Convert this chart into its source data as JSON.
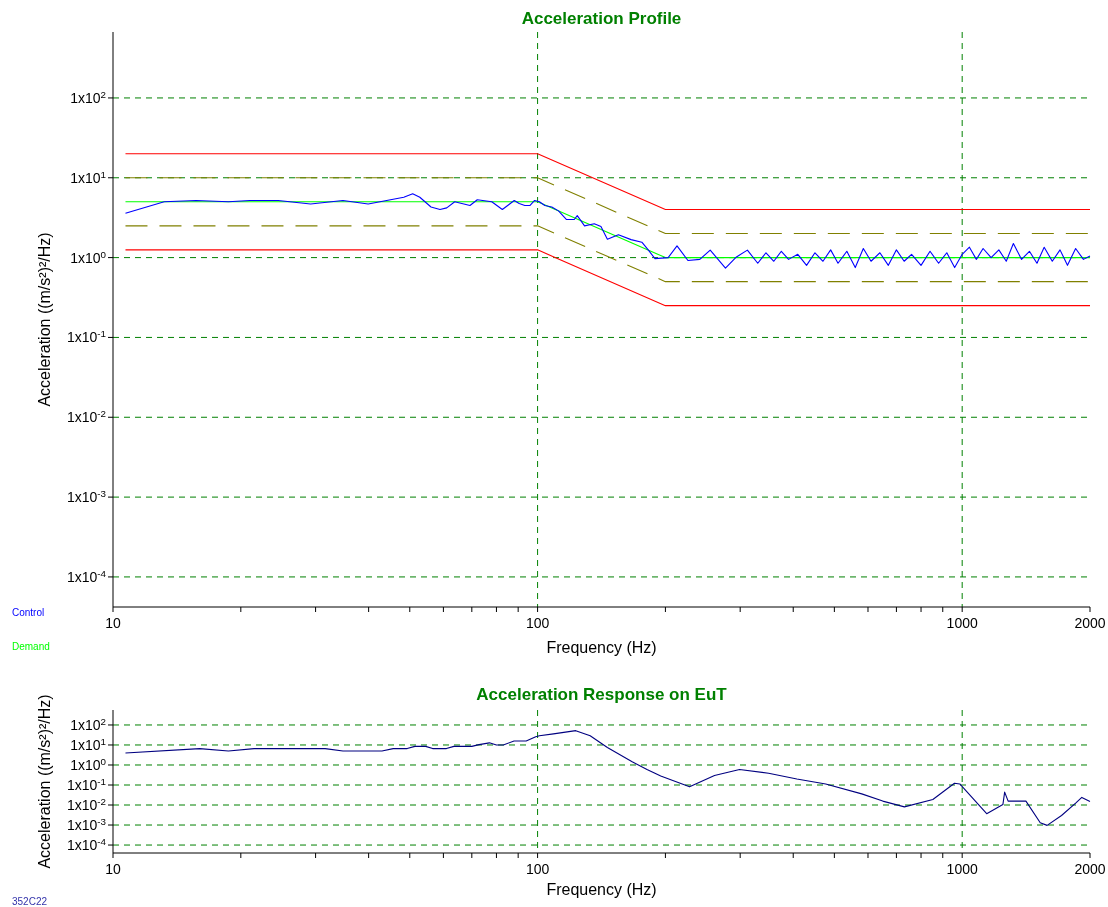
{
  "chart_data": [
    {
      "type": "line",
      "title": "Acceleration Profile",
      "xlabel": "Frequency (Hz)",
      "ylabel": "Acceleration ((m/s²)²/Hz)",
      "log": "xy",
      "grid": true,
      "legend": "bottom left",
      "xlim": [
        10,
        2000
      ],
      "ylim": [
        4.2e-05,
        670
      ],
      "xticks": [
        10,
        {
          "value": 20,
          "label": null
        },
        {
          "value": 30,
          "label": null
        },
        {
          "value": 40,
          "label": null
        },
        {
          "value": 50,
          "label": null
        },
        {
          "value": 60,
          "label": null
        },
        {
          "value": 70,
          "label": null
        },
        {
          "value": 80,
          "label": null
        },
        {
          "value": 90,
          "label": null
        },
        100,
        {
          "value": 200,
          "label": null
        },
        {
          "value": 300,
          "label": null
        },
        {
          "value": 400,
          "label": null
        },
        {
          "value": 500,
          "label": null
        },
        {
          "value": 600,
          "label": null
        },
        {
          "value": 700,
          "label": null
        },
        {
          "value": 800,
          "label": null
        },
        {
          "value": 900,
          "label": null
        },
        1000,
        2000
      ],
      "yticks": [
        {
          "value": 0.0001,
          "label": "1x10$^{-4}$"
        },
        {
          "value": 0.001,
          "label": "1x10$^{-3}$"
        },
        {
          "value": 0.01,
          "label": "1x10$^{-2}$"
        },
        {
          "value": 0.1,
          "label": "1x10$^{-1}$"
        },
        {
          "value": 1,
          "label": "1x10$^{0}$"
        },
        {
          "value": 10,
          "label": "1x10$^{1}$"
        },
        {
          "value": 100,
          "label": "1x10$^{2}$"
        }
      ],
      "series": [
        {
          "color": "#ff0000",
          "x": [
            10.7,
            100,
            200,
            2000
          ],
          "values": [
            20,
            20,
            4,
            4
          ]
        },
        {
          "color": "#ff0000",
          "x": [
            10.7,
            100,
            200,
            2000
          ],
          "values": [
            1.25,
            1.25,
            0.25,
            0.25
          ]
        },
        {
          "color": "#808000",
          "line_style": "dashed",
          "x": [
            10.7,
            100,
            200,
            2000
          ],
          "values": [
            10,
            10,
            2,
            2
          ]
        },
        {
          "color": "#808000",
          "line_style": "dashed",
          "x": [
            10.7,
            100,
            200,
            2000
          ],
          "values": [
            2.5,
            2.5,
            0.5,
            0.5
          ]
        },
        {
          "name": "Demand",
          "color": "#00ff00",
          "x": [
            10.7,
            100,
            200,
            2000
          ],
          "values": [
            5,
            5,
            1,
            1
          ]
        },
        {
          "name": "Control",
          "color": "#0000ff",
          "x": [
            10.7,
            13.2,
            15.7,
            18.7,
            21,
            24.5,
            29.2,
            34.8,
            39.9,
            48.4,
            50.8,
            52.8,
            56.1,
            58.9,
            61.1,
            63.8,
            69.3,
            72.1,
            78,
            82.6,
            88.1,
            90.5,
            93.3,
            96,
            98.4,
            101,
            104,
            108,
            112,
            117,
            122,
            124,
            129,
            136,
            141,
            146,
            155,
            166,
            176,
            182,
            189,
            203,
            213,
            226,
            241,
            255,
            277,
            294,
            312,
            330,
            345,
            360,
            375,
            390,
            410,
            430,
            450,
            470,
            490,
            510,
            535,
            560,
            585,
            610,
            640,
            670,
            700,
            730,
            760,
            800,
            840,
            880,
            920,
            960,
            1000,
            1040,
            1080,
            1120,
            1170,
            1220,
            1270,
            1320,
            1380,
            1440,
            1500,
            1560,
            1630,
            1700,
            1770,
            1850,
            1930,
            2000
          ],
          "values": [
            3.6,
            5,
            5.2,
            5,
            5.2,
            5.2,
            4.7,
            5.2,
            4.7,
            5.7,
            6.3,
            5.7,
            4.3,
            4,
            4.2,
            5,
            4.5,
            5.3,
            5,
            4,
            5.2,
            4.75,
            4.5,
            4.5,
            5.2,
            5,
            4.5,
            4.3,
            3.85,
            3,
            3,
            3.35,
            2.5,
            2.65,
            2.45,
            1.7,
            1.93,
            1.68,
            1.56,
            1.26,
            0.97,
            1,
            1.4,
            0.92,
            0.95,
            1.24,
            0.74,
            1.02,
            1.24,
            0.85,
            1.15,
            0.9,
            1.2,
            0.95,
            1.1,
            0.8,
            1.15,
            0.9,
            1.25,
            0.85,
            1.2,
            0.75,
            1.3,
            0.9,
            1.15,
            0.8,
            1.25,
            0.9,
            1.1,
            0.8,
            1.2,
            0.85,
            1.15,
            0.75,
            1.1,
            1.35,
            0.95,
            1.3,
            1,
            1.25,
            0.9,
            1.5,
            0.95,
            1.2,
            0.85,
            1.35,
            0.9,
            1.25,
            0.8,
            1.3,
            0.95,
            1.05
          ]
        }
      ]
    },
    {
      "type": "line",
      "title": "Acceleration Response on EuT",
      "xlabel": "Frequency (Hz)",
      "ylabel": "Acceleration ((m/s²)²/Hz)",
      "log": "xy",
      "grid": true,
      "annotations": [
        "352C22"
      ],
      "xlim": [
        10,
        2000
      ],
      "ylim": [
        4e-05,
        560
      ],
      "xticks": [
        10,
        {
          "value": 20,
          "label": null
        },
        {
          "value": 30,
          "label": null
        },
        {
          "value": 40,
          "label": null
        },
        {
          "value": 50,
          "label": null
        },
        {
          "value": 60,
          "label": null
        },
        {
          "value": 70,
          "label": null
        },
        {
          "value": 80,
          "label": null
        },
        {
          "value": 90,
          "label": null
        },
        100,
        {
          "value": 200,
          "label": null
        },
        {
          "value": 300,
          "label": null
        },
        {
          "value": 400,
          "label": null
        },
        {
          "value": 500,
          "label": null
        },
        {
          "value": 600,
          "label": null
        },
        {
          "value": 700,
          "label": null
        },
        {
          "value": 800,
          "label": null
        },
        {
          "value": 900,
          "label": null
        },
        1000,
        2000
      ],
      "yticks": [
        {
          "value": 0.0001,
          "label": "1x10$^{-4}$"
        },
        {
          "value": 0.001,
          "label": "1x10$^{-3}$"
        },
        {
          "value": 0.01,
          "label": "1x10$^{-2}$"
        },
        {
          "value": 0.1,
          "label": "1x10$^{-1}$"
        },
        {
          "value": 1,
          "label": "1x10$^{0}$"
        },
        {
          "value": 10,
          "label": "1x10$^{1}$"
        },
        {
          "value": 100,
          "label": "1x10$^{2}$"
        }
      ],
      "series": [
        {
          "color": "#000080",
          "x": [
            10.7,
            16,
            18.7,
            21.5,
            31.6,
            34.8,
            43,
            45.7,
            49.3,
            51.4,
            54.5,
            56.6,
            61,
            63.5,
            70,
            72.8,
            77,
            80,
            83,
            88,
            94,
            99,
            101,
            109,
            123,
            133,
            146,
            167,
            181,
            195,
            228,
            261,
            299,
            350,
            408,
            477,
            580,
            650,
            731,
            853,
            959,
            987,
            1142,
            1247,
            1259,
            1283,
            1413,
            1527,
            1585,
            1714,
            1853,
            1913,
            2000
          ],
          "values": [
            4,
            6.6,
            5,
            6.6,
            6.6,
            5,
            5,
            6.6,
            6.6,
            8.5,
            8.5,
            6.6,
            6.6,
            8.5,
            8.5,
            10.4,
            12.8,
            10,
            10,
            15.7,
            15.7,
            25.8,
            29,
            36,
            52,
            29,
            7.5,
            1.45,
            0.59,
            0.28,
            0.081,
            0.3,
            0.59,
            0.39,
            0.2,
            0.113,
            0.036,
            0.0157,
            0.0081,
            0.019,
            0.123,
            0.113,
            0.0037,
            0.0105,
            0.044,
            0.0157,
            0.0157,
            0.0013,
            0.00096,
            0.003,
            0.0128,
            0.024,
            0.015
          ]
        }
      ]
    }
  ]
}
